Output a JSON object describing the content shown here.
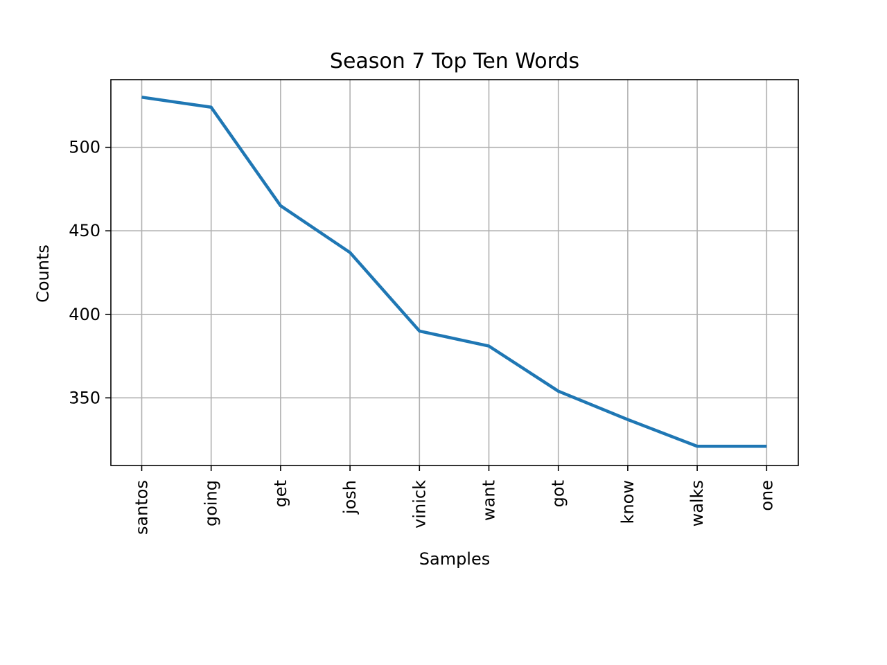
{
  "chart_data": {
    "type": "line",
    "title": "Season 7 Top Ten Words",
    "xlabel": "Samples",
    "ylabel": "Counts",
    "categories": [
      "santos",
      "going",
      "get",
      "josh",
      "vinick",
      "want",
      "got",
      "know",
      "walks",
      "one"
    ],
    "series": [
      {
        "name": "Counts",
        "values": [
          530,
          524,
          465,
          437,
          390,
          381,
          354,
          337,
          321,
          321
        ]
      }
    ],
    "ylim": [
      309.5,
      540.5
    ],
    "yticks": [
      350,
      400,
      450,
      500
    ],
    "grid": true,
    "line_color": "#1f77b4"
  }
}
